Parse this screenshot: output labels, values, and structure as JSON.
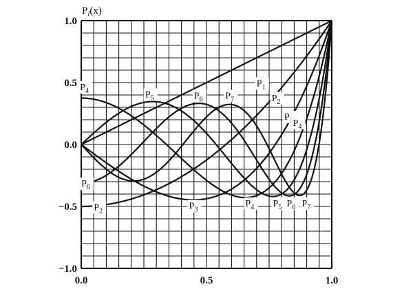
{
  "chart_data": {
    "type": "line",
    "ylabel": "P_l(x)",
    "xlim": [
      0,
      1
    ],
    "ylim": [
      -1,
      1
    ],
    "grid": true,
    "x_ticks": [
      {
        "value": 0,
        "label": "0.0"
      },
      {
        "value": 0.5,
        "label": "0.5"
      },
      {
        "value": 1,
        "label": "1.0"
      }
    ],
    "y_ticks": [
      {
        "value": 1,
        "label": "1.0"
      },
      {
        "value": 0.5,
        "label": "0.5"
      },
      {
        "value": 0,
        "label": "0.0"
      },
      {
        "value": -0.5,
        "label": "−0.5"
      },
      {
        "value": -1,
        "label": "−1.0"
      }
    ],
    "series": [
      {
        "name": "P1",
        "degree": 1
      },
      {
        "name": "P2",
        "degree": 2
      },
      {
        "name": "P3",
        "degree": 3
      },
      {
        "name": "P4",
        "degree": 4
      },
      {
        "name": "P5",
        "degree": 5
      },
      {
        "name": "P6",
        "degree": 6
      },
      {
        "name": "P7",
        "degree": 7
      }
    ],
    "annotations": [
      {
        "text": "P",
        "sub": "1",
        "x": 0.7,
        "y": 0.47
      },
      {
        "text": "P",
        "sub": "2",
        "x": 0.76,
        "y": 0.35
      },
      {
        "text": "P",
        "sub": "3",
        "x": 0.81,
        "y": 0.2
      },
      {
        "text": "P",
        "sub": "4",
        "x": 0.845,
        "y": 0.15
      },
      {
        "text": "P",
        "sub": "4",
        "x": -0.005,
        "y": 0.44
      },
      {
        "text": "P",
        "sub": "5",
        "x": 0.255,
        "y": 0.38
      },
      {
        "text": "P",
        "sub": "6",
        "x": 0.45,
        "y": 0.37
      },
      {
        "text": "P",
        "sub": "7",
        "x": 0.575,
        "y": 0.37
      },
      {
        "text": "P",
        "sub": "6",
        "x": 0.0,
        "y": -0.34
      },
      {
        "text": "P",
        "sub": "2",
        "x": 0.05,
        "y": -0.53
      },
      {
        "text": "P",
        "sub": "3",
        "x": 0.43,
        "y": -0.52
      },
      {
        "text": "P",
        "sub": "4",
        "x": 0.655,
        "y": -0.5
      },
      {
        "text": "P",
        "sub": "5",
        "x": 0.765,
        "y": -0.5
      },
      {
        "text": "P",
        "sub": "6",
        "x": 0.82,
        "y": -0.5
      },
      {
        "text": "P",
        "sub": "7",
        "x": 0.88,
        "y": -0.5
      }
    ]
  }
}
